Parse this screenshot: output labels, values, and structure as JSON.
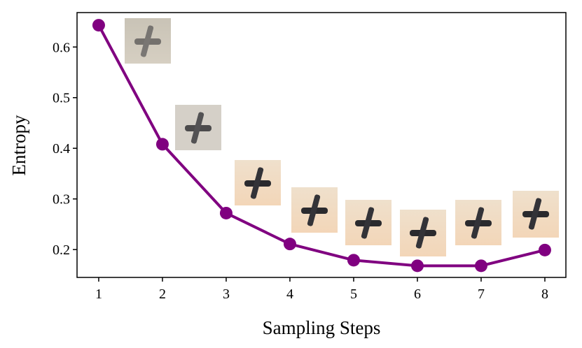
{
  "chart_data": {
    "type": "line",
    "x": [
      1,
      2,
      3,
      4,
      5,
      6,
      7,
      8
    ],
    "series": [
      {
        "color": "#800080",
        "values": [
          0.643,
          0.408,
          0.272,
          0.211,
          0.179,
          0.168,
          0.168,
          0.199
        ]
      }
    ],
    "xlabel": "Sampling Steps",
    "ylabel": "Entropy",
    "xlim": [
      0.66,
      8.33
    ],
    "ylim": [
      0.145,
      0.668
    ],
    "xticks": [
      1,
      2,
      3,
      4,
      5,
      6,
      7,
      8
    ],
    "yticks": [
      0.2,
      0.3,
      0.4,
      0.5,
      0.6
    ],
    "grid": false
  }
}
